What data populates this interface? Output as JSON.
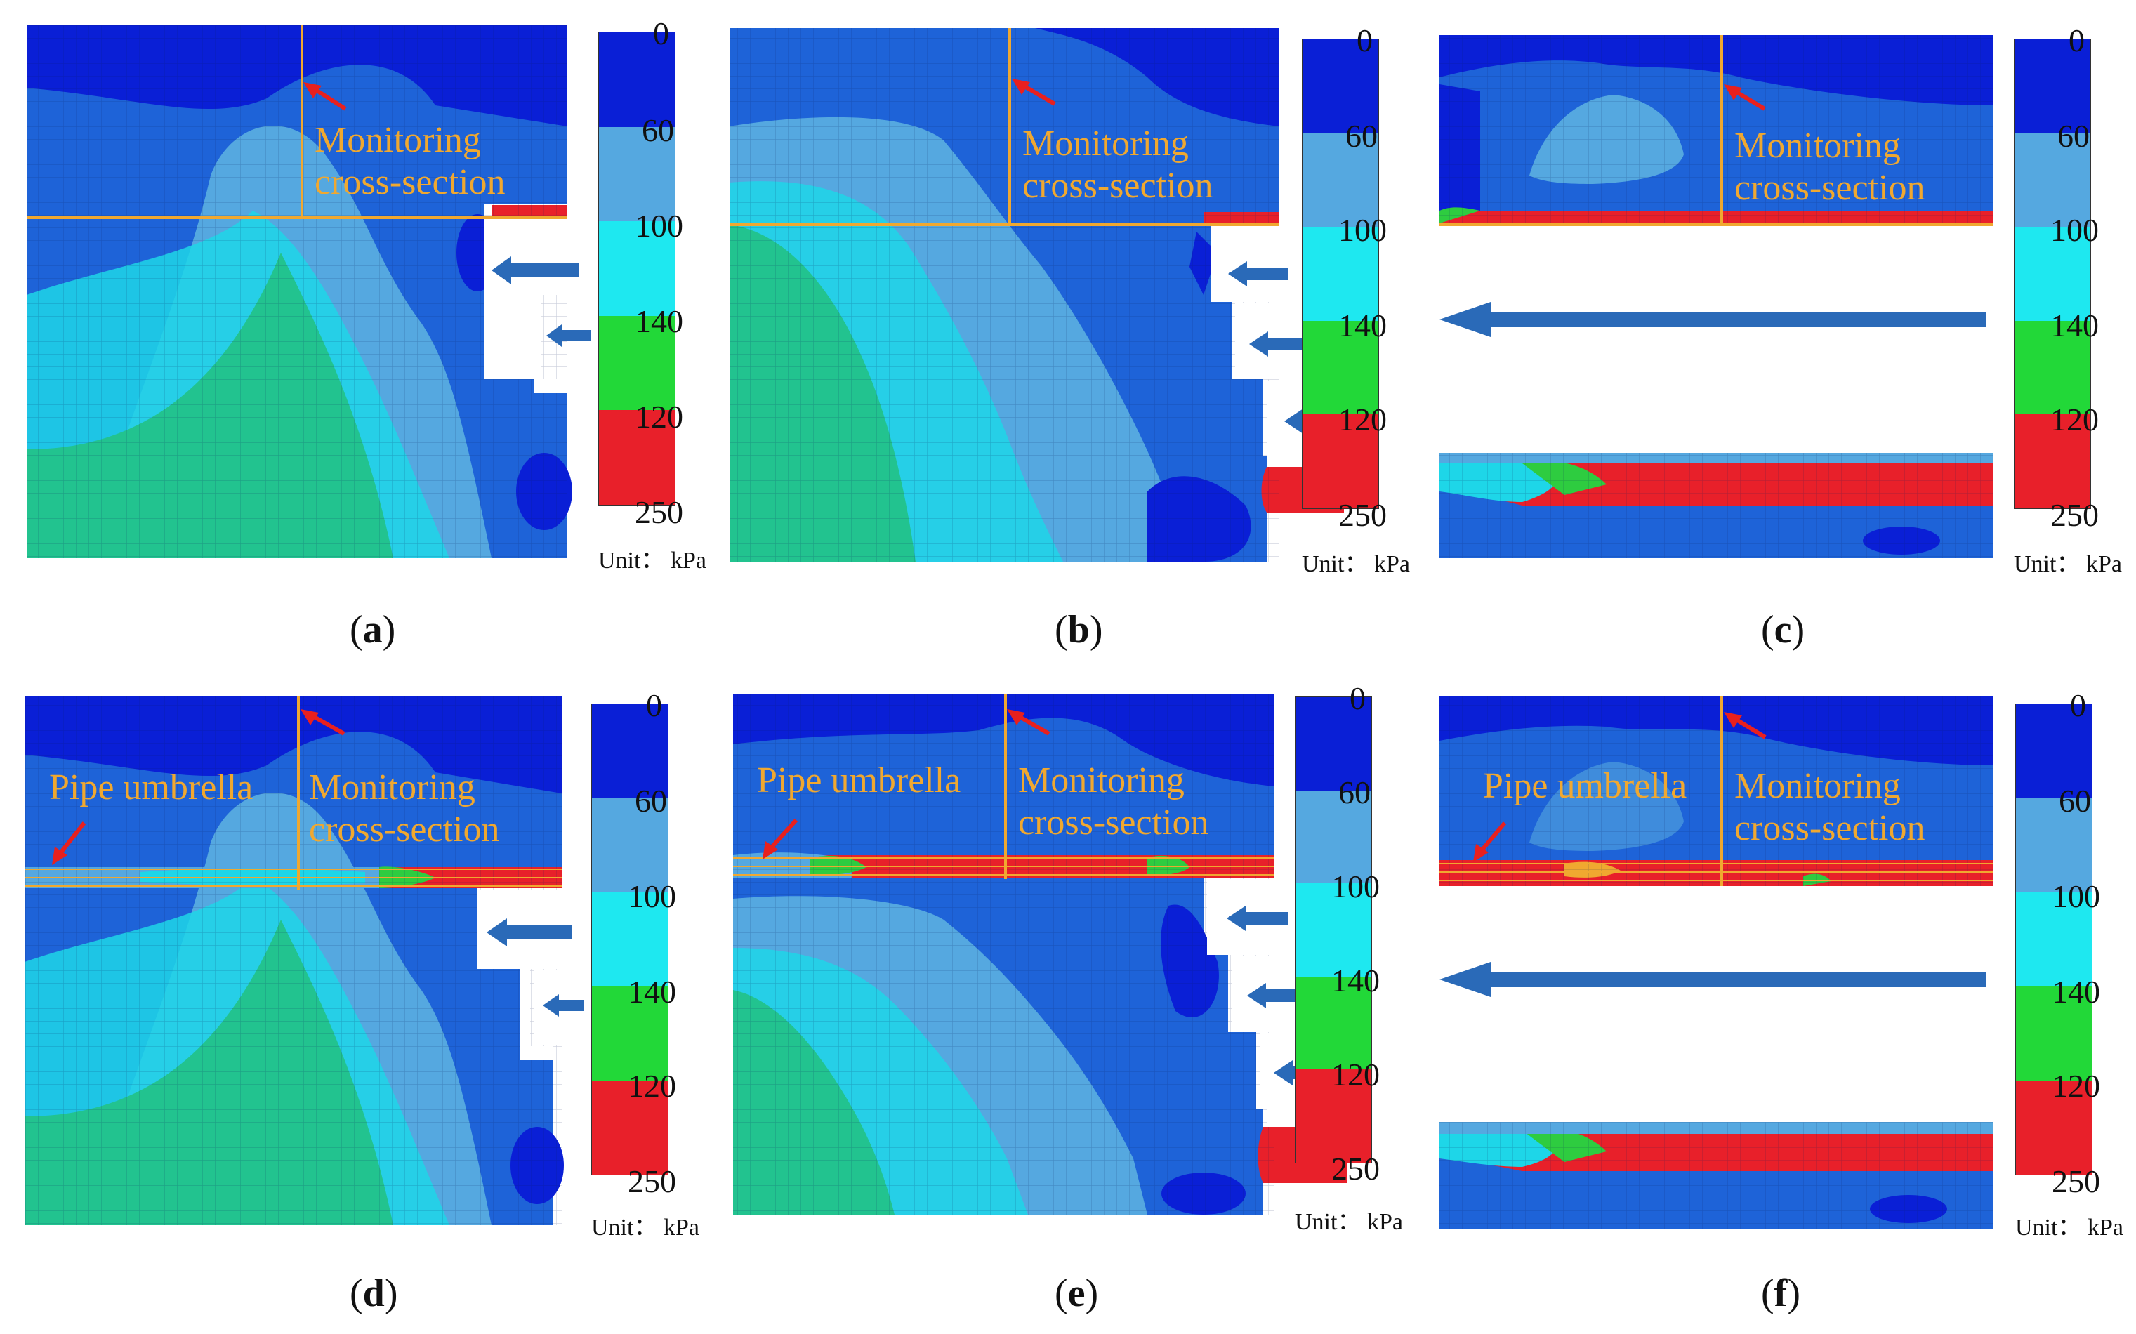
{
  "colors": {
    "deep_blue": "#0a1fd6",
    "mid_blue": "#1e63d8",
    "light_blue": "#55a8e0",
    "cyan": "#1ed6e8",
    "green_cyan": "#22c38f",
    "green": "#2ecc40",
    "red": "#e8202a",
    "annotation_orange": "#f0a830",
    "arrow_red": "#e8201e",
    "flow_arrow": "#2a6ab8"
  },
  "legend": {
    "tick_labels": [
      "0",
      "60",
      "100",
      "140",
      "120",
      "250"
    ],
    "unit": "Unit： kPa",
    "band_colors": [
      "#0a1fd6",
      "#55a8e0",
      "#1ee8f0",
      "#22d838",
      "#e8202a"
    ]
  },
  "annotations": {
    "monitoring_line1": "Monitoring",
    "monitoring_line2": "cross-section",
    "pipe_umbrella": "Pipe umbrella"
  },
  "panels": [
    {
      "label": "(a)",
      "letter": "a",
      "variant": "two-step",
      "pipe_umbrella": false
    },
    {
      "label": "(b)",
      "letter": "b",
      "variant": "three-step",
      "pipe_umbrella": false
    },
    {
      "label": "(c)",
      "letter": "c",
      "variant": "full-face",
      "pipe_umbrella": false
    },
    {
      "label": "(d)",
      "letter": "d",
      "variant": "two-step",
      "pipe_umbrella": true
    },
    {
      "label": "(e)",
      "letter": "e",
      "variant": "three-step",
      "pipe_umbrella": true
    },
    {
      "label": "(f)",
      "letter": "f",
      "variant": "full-face",
      "pipe_umbrella": true
    }
  ]
}
